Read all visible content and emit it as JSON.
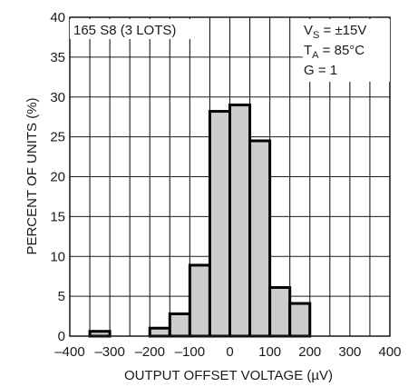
{
  "chart_data": {
    "type": "bar",
    "xlabel": "OUTPUT OFFSET VOLTAGE (µV)",
    "ylabel": "PERCENT OF UNITS (%)",
    "xlim": [
      -400,
      400
    ],
    "ylim": [
      0,
      40
    ],
    "x_ticks": [
      -400,
      -300,
      -200,
      -100,
      0,
      100,
      200,
      300,
      400
    ],
    "x_tick_labels": [
      "–400",
      "–300",
      "–200",
      "–100",
      "0",
      "100",
      "200",
      "300",
      "400"
    ],
    "y_ticks": [
      0,
      5,
      10,
      15,
      20,
      25,
      30,
      35,
      40
    ],
    "y_tick_labels": [
      "0",
      "5",
      "10",
      "15",
      "20",
      "25",
      "30",
      "35",
      "40"
    ],
    "grid": true,
    "bin_width": 50,
    "bins": [
      {
        "x0": -350,
        "x1": -300,
        "value": 0.6
      },
      {
        "x0": -200,
        "x1": -150,
        "value": 1.0
      },
      {
        "x0": -150,
        "x1": -100,
        "value": 2.8
      },
      {
        "x0": -100,
        "x1": -50,
        "value": 8.9
      },
      {
        "x0": -50,
        "x1": 0,
        "value": 28.2
      },
      {
        "x0": 0,
        "x1": 50,
        "value": 29.0
      },
      {
        "x0": 50,
        "x1": 100,
        "value": 24.5
      },
      {
        "x0": 100,
        "x1": 150,
        "value": 6.1
      },
      {
        "x0": 150,
        "x1": 200,
        "value": 4.1
      }
    ],
    "annotations": {
      "left_label": "165 S8 (3 LOTS)",
      "vs_main": "V",
      "vs_sub": "S",
      "vs_value": " = ±15V",
      "ta_main": "T",
      "ta_sub": "A",
      "ta_value": " = 85°C",
      "gain": "G = 1"
    }
  },
  "colors": {
    "bar_fill": "#cccccc",
    "bar_stroke": "#000000",
    "grid": "#1a1a1a",
    "frame": "#1a1a1a"
  }
}
